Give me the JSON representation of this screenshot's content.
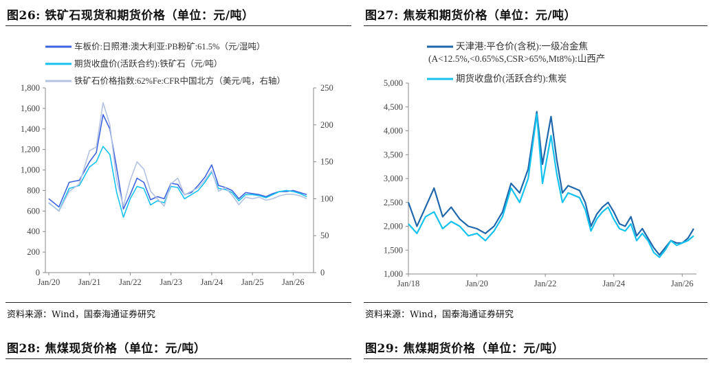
{
  "captions": {
    "fig26": "图26: 铁矿石现货和期货价格（单位：元/吨）",
    "fig27": "图27: 焦炭和期货价格（单位：元/吨）",
    "fig28": "图28: 焦煤现货价格（单位：元/吨）",
    "fig29": "图29: 焦煤期货价格（单位：元/吨）"
  },
  "sources": {
    "left": "资料来源：Wind，国泰海通证券研究",
    "right": "资料来源：Wind，国泰海通证券研究"
  },
  "colors": {
    "dark_blue": "#1f67ad",
    "royal_blue": "#3b63e0",
    "cyan": "#14c2ef",
    "light_blue": "#b3c2e2",
    "axis": "#888888"
  },
  "chart_data": [
    {
      "type": "line",
      "x_ticks": [
        "Jan/20",
        "Jan/21",
        "Jan/22",
        "Jan/23",
        "Jan/24",
        "Jan/25",
        "Jan/26"
      ],
      "y_ticks_left": [
        "1,800",
        "1,600",
        "1,400",
        "1,200",
        "1,000",
        "800",
        "600",
        "400",
        "200",
        "0"
      ],
      "y_ticks_right": [
        "250",
        "200",
        "150",
        "100",
        "50",
        "0"
      ],
      "ylim_left": [
        0,
        1800
      ],
      "ylim_right": [
        0,
        250
      ],
      "series": [
        {
          "name": "车板价:日照港:澳大利亚:PB粉矿:61.5%（元/湿吨）",
          "axis": "left",
          "color": "#3b63e0",
          "x": [
            "2020-01",
            "2020-04",
            "2020-07",
            "2020-10",
            "2021-01",
            "2021-03",
            "2021-05",
            "2021-07",
            "2021-09",
            "2021-11",
            "2022-01",
            "2022-03",
            "2022-05",
            "2022-07",
            "2022-09",
            "2022-11",
            "2023-01",
            "2023-03",
            "2023-05",
            "2023-07",
            "2023-09",
            "2023-11",
            "2024-01",
            "2024-03",
            "2024-05",
            "2024-07",
            "2024-09",
            "2024-11",
            "2025-01",
            "2025-03",
            "2025-05",
            "2025-07",
            "2025-09",
            "2025-11",
            "2026-01",
            "2026-03",
            "2026-05"
          ],
          "y": [
            720,
            640,
            880,
            900,
            1080,
            1170,
            1540,
            1400,
            1020,
            620,
            760,
            920,
            880,
            710,
            740,
            720,
            870,
            860,
            760,
            780,
            850,
            930,
            1050,
            850,
            830,
            800,
            720,
            780,
            770,
            760,
            740,
            770,
            790,
            790,
            800,
            780,
            760
          ]
        },
        {
          "name": "期货收盘价(活跃合约):铁矿石（元/吨）",
          "axis": "left",
          "color": "#14c2ef",
          "x": [
            "2020-01",
            "2020-04",
            "2020-07",
            "2020-10",
            "2021-01",
            "2021-03",
            "2021-05",
            "2021-07",
            "2021-09",
            "2021-11",
            "2022-01",
            "2022-03",
            "2022-05",
            "2022-07",
            "2022-09",
            "2022-11",
            "2023-01",
            "2023-03",
            "2023-05",
            "2023-07",
            "2023-09",
            "2023-11",
            "2024-01",
            "2024-03",
            "2024-05",
            "2024-07",
            "2024-09",
            "2024-11",
            "2025-01",
            "2025-03",
            "2025-05",
            "2025-07",
            "2025-09",
            "2025-11",
            "2026-01",
            "2026-03",
            "2026-05"
          ],
          "y": [
            680,
            600,
            820,
            850,
            1030,
            1080,
            1230,
            1150,
            780,
            540,
            720,
            840,
            820,
            660,
            700,
            680,
            840,
            830,
            720,
            760,
            800,
            880,
            980,
            820,
            810,
            780,
            700,
            760,
            760,
            750,
            730,
            760,
            790,
            800,
            790,
            770,
            740
          ]
        },
        {
          "name": "铁矿石价格指数:62%Fe:CFR中国北方（美元/吨，右轴）",
          "axis": "right",
          "color": "#b3c2e2",
          "x": [
            "2020-01",
            "2020-04",
            "2020-07",
            "2020-10",
            "2021-01",
            "2021-03",
            "2021-05",
            "2021-07",
            "2021-09",
            "2021-11",
            "2022-01",
            "2022-03",
            "2022-05",
            "2022-07",
            "2022-09",
            "2022-11",
            "2023-01",
            "2023-03",
            "2023-05",
            "2023-07",
            "2023-09",
            "2023-11",
            "2024-01",
            "2024-03",
            "2024-05",
            "2024-07",
            "2024-09",
            "2024-11",
            "2025-01",
            "2025-03",
            "2025-05",
            "2025-07",
            "2025-09",
            "2025-11",
            "2026-01",
            "2026-03",
            "2026-05"
          ],
          "y": [
            95,
            83,
            110,
            120,
            165,
            170,
            230,
            200,
            125,
            90,
            125,
            150,
            140,
            110,
            100,
            90,
            120,
            128,
            105,
            110,
            115,
            125,
            138,
            110,
            115,
            105,
            92,
            102,
            100,
            102,
            98,
            100,
            104,
            106,
            106,
            104,
            100
          ]
        }
      ]
    },
    {
      "type": "line",
      "x_ticks": [
        "Jan/18",
        "Jan/20",
        "Jan/22",
        "Jan/24",
        "Jan/26"
      ],
      "y_ticks_left": [
        "5,000",
        "4,500",
        "4,000",
        "3,500",
        "3,000",
        "2,500",
        "2,000",
        "1,500",
        "1,000"
      ],
      "ylim_left": [
        1000,
        5000
      ],
      "series": [
        {
          "name": "天津港:平仓价(含税):一级冶金焦(A<12.5%,<0.65%S,CSR>65%,Mt8%):山西产",
          "axis": "left",
          "color": "#1f67ad",
          "x": [
            "2018-01",
            "2018-04",
            "2018-07",
            "2018-10",
            "2019-01",
            "2019-04",
            "2019-07",
            "2019-10",
            "2020-01",
            "2020-04",
            "2020-07",
            "2020-10",
            "2021-01",
            "2021-04",
            "2021-07",
            "2021-10",
            "2021-12",
            "2022-03",
            "2022-05",
            "2022-07",
            "2022-09",
            "2022-11",
            "2023-01",
            "2023-03",
            "2023-05",
            "2023-07",
            "2023-09",
            "2023-11",
            "2024-01",
            "2024-03",
            "2024-05",
            "2024-07",
            "2024-09",
            "2024-11",
            "2025-01",
            "2025-03",
            "2025-05",
            "2025-07",
            "2025-09",
            "2025-11",
            "2026-01",
            "2026-03",
            "2026-05"
          ],
          "y": [
            2500,
            2000,
            2400,
            2800,
            2200,
            2400,
            2150,
            2000,
            1950,
            1850,
            2000,
            2300,
            2900,
            2700,
            3200,
            4400,
            3300,
            4300,
            3400,
            2700,
            2850,
            2800,
            2750,
            2500,
            2000,
            2250,
            2400,
            2500,
            2300,
            2050,
            2000,
            2200,
            1800,
            1950,
            1750,
            1550,
            1400,
            1550,
            1700,
            1650,
            1650,
            1750,
            1950
          ]
        },
        {
          "name": "期货收盘价(活跃合约):焦炭",
          "axis": "left",
          "color": "#14c2ef",
          "x": [
            "2018-01",
            "2018-04",
            "2018-07",
            "2018-10",
            "2019-01",
            "2019-04",
            "2019-07",
            "2019-10",
            "2020-01",
            "2020-04",
            "2020-07",
            "2020-10",
            "2021-01",
            "2021-04",
            "2021-07",
            "2021-10",
            "2021-12",
            "2022-03",
            "2022-05",
            "2022-07",
            "2022-09",
            "2022-11",
            "2023-01",
            "2023-03",
            "2023-05",
            "2023-07",
            "2023-09",
            "2023-11",
            "2024-01",
            "2024-03",
            "2024-05",
            "2024-07",
            "2024-09",
            "2024-11",
            "2025-01",
            "2025-03",
            "2025-05",
            "2025-07",
            "2025-09",
            "2025-11",
            "2026-01",
            "2026-03",
            "2026-05"
          ],
          "y": [
            2050,
            1850,
            2200,
            2300,
            1950,
            2100,
            2000,
            1800,
            1850,
            1700,
            1900,
            2200,
            2800,
            2500,
            3000,
            4350,
            2900,
            3900,
            3100,
            2500,
            2700,
            2650,
            2600,
            2350,
            1900,
            2150,
            2300,
            2400,
            2150,
            1950,
            1900,
            2050,
            1700,
            1850,
            1700,
            1450,
            1350,
            1500,
            1700,
            1600,
            1650,
            1700,
            1800
          ]
        }
      ]
    }
  ]
}
